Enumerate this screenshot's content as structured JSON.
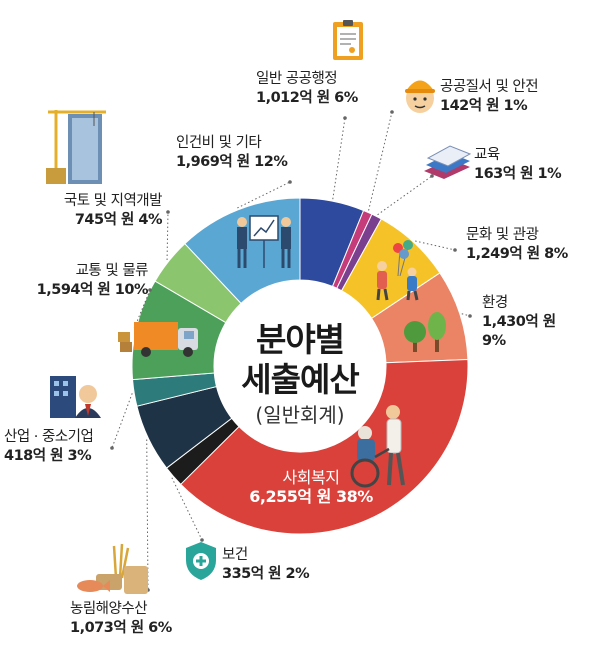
{
  "center": {
    "line1": "분야별",
    "line2": "세출예산",
    "line3": "(일반회계)"
  },
  "chart_data": {
    "type": "pie",
    "slices": [
      {
        "name": "일반 공공행정",
        "value_text": "1,012억 원 6%",
        "amount": 1012,
        "percent": 6,
        "color": "#2e4a9e"
      },
      {
        "name": "공공질서 및 안전",
        "value_text": "142억 원 1%",
        "amount": 142,
        "percent": 1,
        "color": "#c63b7a"
      },
      {
        "name": "교육",
        "value_text": "163억 원 1%",
        "amount": 163,
        "percent": 1,
        "color": "#7b3f8f"
      },
      {
        "name": "문화 및 관광",
        "value_text": "1,249억 원 8%",
        "amount": 1249,
        "percent": 8,
        "color": "#f5c328"
      },
      {
        "name": "환경",
        "value_text": "1,430억 원 9%",
        "amount": 1430,
        "percent": 9,
        "color": "#eb8365"
      },
      {
        "name": "사회복지",
        "value_text": "6,255억 원 38%",
        "amount": 6255,
        "percent": 38,
        "color": "#d9413a"
      },
      {
        "name": "보건",
        "value_text": "335억 원 2%",
        "amount": 335,
        "percent": 2,
        "color": "#1c1c1c"
      },
      {
        "name": "농림해양수산",
        "value_text": "1,073억 원 6%",
        "amount": 1073,
        "percent": 6,
        "color": "#1f3346"
      },
      {
        "name": "산업 · 중소기업",
        "value_text": "418억 원 3%",
        "amount": 418,
        "percent": 3,
        "color": "#2e7b7b"
      },
      {
        "name": "교통 및 물류",
        "value_text": "1,594억 원 10%",
        "amount": 1594,
        "percent": 10,
        "color": "#4da05a"
      },
      {
        "name": "국토 및 지역개발",
        "value_text": "745억 원 4%",
        "amount": 745,
        "percent": 4,
        "color": "#8bc56e"
      },
      {
        "name": "인건비 및 기타",
        "value_text": "1,969억 원 12%",
        "amount": 1969,
        "percent": 12,
        "color": "#5aa7d3"
      }
    ]
  }
}
